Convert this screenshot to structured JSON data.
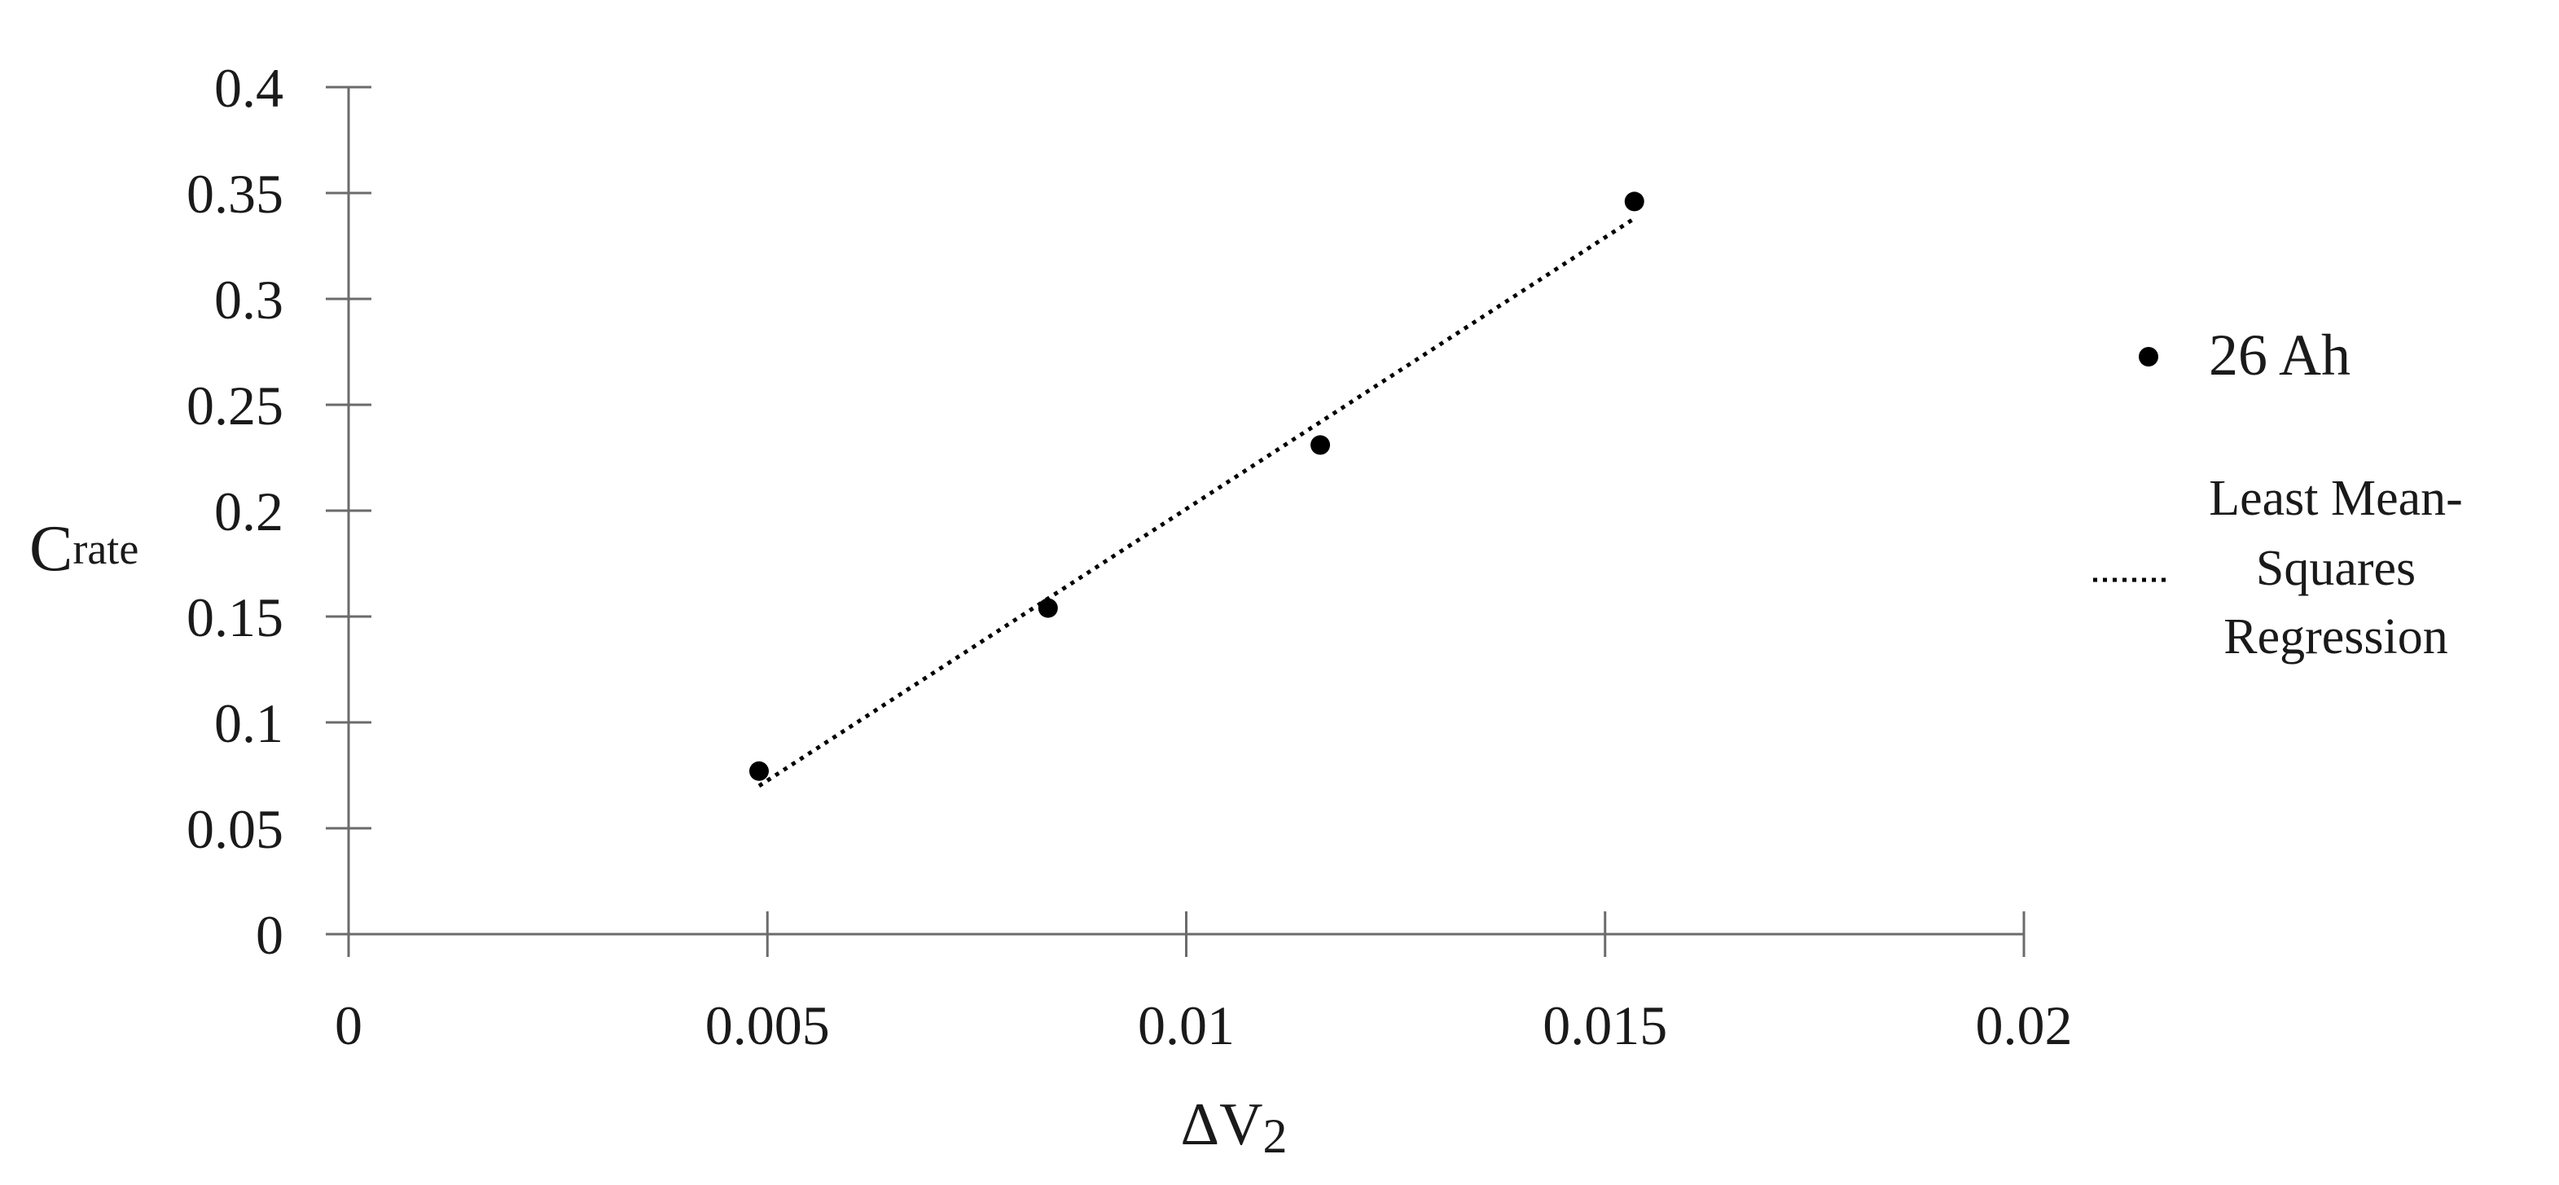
{
  "chart_data": {
    "type": "scatter",
    "xlabel": {
      "main": "ΔV",
      "sub": "2"
    },
    "ylabel": {
      "main": "C",
      "sub": "rate"
    },
    "xlim": [
      0,
      0.02
    ],
    "ylim": [
      0,
      0.4
    ],
    "x_ticks": [
      "0",
      "0.005",
      "0.01",
      "0.015",
      "0.02"
    ],
    "y_ticks": [
      "0",
      "0.05",
      "0.1",
      "0.15",
      "0.2",
      "0.25",
      "0.3",
      "0.35",
      "0.4"
    ],
    "grid": false,
    "legend_position": "right",
    "series": [
      {
        "name": "26 Ah",
        "mode": "markers",
        "color": "#000000",
        "x": [
          0.0049,
          0.00835,
          0.0116,
          0.01535
        ],
        "y": [
          0.077,
          0.154,
          0.231,
          0.346
        ]
      },
      {
        "name": "Least Mean-Squares Regression",
        "name_lines": [
          "Least Mean-",
          "Squares",
          "Regression"
        ],
        "mode": "line",
        "line_style": "dotted",
        "color": "#000000",
        "x": [
          0.0049,
          0.01535
        ],
        "y": [
          0.07,
          0.338
        ]
      }
    ]
  }
}
